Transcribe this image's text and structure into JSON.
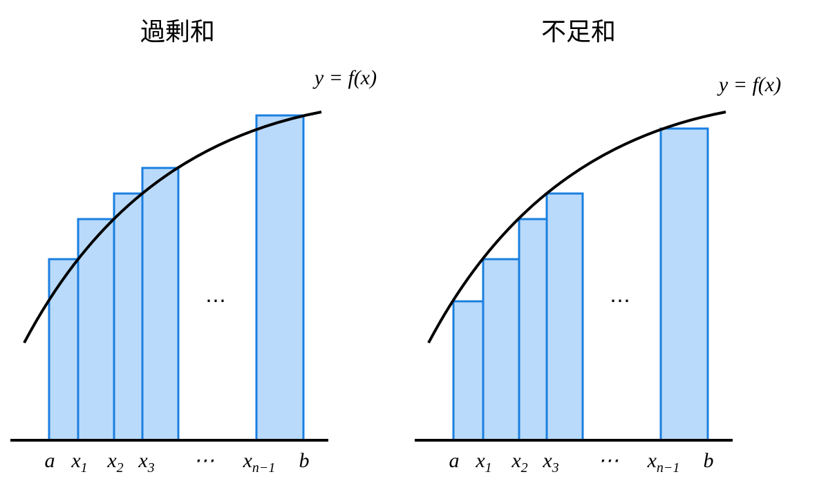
{
  "panels": [
    {
      "title": "過剰和",
      "curve_label": "y = f(x)",
      "dots": "⋯",
      "x_labels": [
        {
          "text": "a"
        },
        {
          "text": "x",
          "sub": "1"
        },
        {
          "text": "x",
          "sub": "2"
        },
        {
          "text": "x",
          "sub": "3"
        },
        {
          "text": "⋯"
        },
        {
          "text": "x",
          "sub": "n−1"
        },
        {
          "text": "b"
        }
      ]
    },
    {
      "title": "不足和",
      "curve_label": "y = f(x)",
      "dots": "⋯",
      "x_labels": [
        {
          "text": "a"
        },
        {
          "text": "x",
          "sub": "1"
        },
        {
          "text": "x",
          "sub": "2"
        },
        {
          "text": "x",
          "sub": "3"
        },
        {
          "text": "⋯"
        },
        {
          "text": "x",
          "sub": "n−1"
        },
        {
          "text": "b"
        }
      ]
    }
  ]
}
